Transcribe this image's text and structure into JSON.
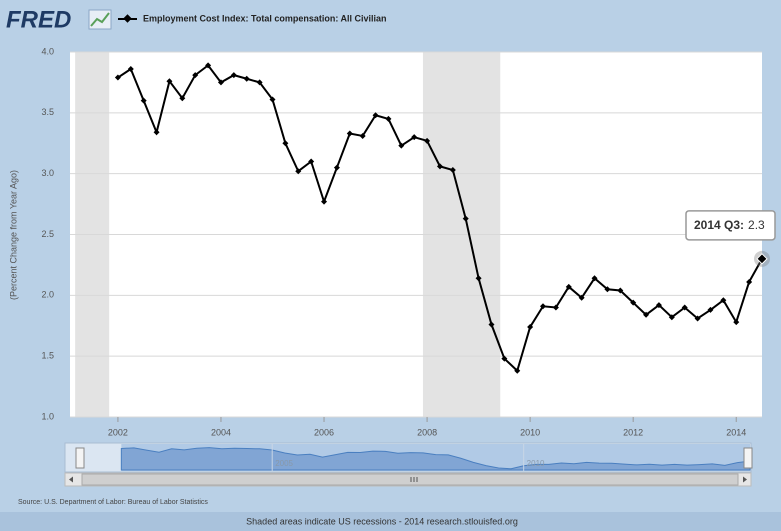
{
  "logo": "FRED",
  "chart_data": {
    "type": "line",
    "title": "Employment Cost Index: Total compensation: All Civilian",
    "y_label": "(Percent Change from Year Ago)",
    "color": "#000000",
    "x": [
      2002,
      2002.25,
      2002.5,
      2002.75,
      2003,
      2003.25,
      2003.5,
      2003.75,
      2004,
      2004.25,
      2004.5,
      2004.75,
      2005,
      2005.25,
      2005.5,
      2005.75,
      2006,
      2006.25,
      2006.5,
      2006.75,
      2007,
      2007.25,
      2007.5,
      2007.75,
      2008,
      2008.25,
      2008.5,
      2008.75,
      2009,
      2009.25,
      2009.5,
      2009.75,
      2010,
      2010.25,
      2010.5,
      2010.75,
      2011,
      2011.25,
      2011.5,
      2011.75,
      2012,
      2012.25,
      2012.5,
      2012.75,
      2013,
      2013.25,
      2013.5,
      2013.75,
      2014,
      2014.25,
      2014.5
    ],
    "values": [
      3.79,
      3.86,
      3.6,
      3.34,
      3.76,
      3.62,
      3.81,
      3.89,
      3.75,
      3.81,
      3.78,
      3.75,
      3.61,
      3.25,
      3.02,
      3.1,
      2.77,
      3.05,
      3.33,
      3.31,
      3.48,
      3.45,
      3.23,
      3.3,
      3.27,
      3.06,
      3.03,
      2.63,
      2.14,
      1.76,
      1.48,
      1.38,
      1.74,
      1.91,
      1.9,
      2.07,
      1.98,
      2.14,
      2.05,
      2.04,
      1.94,
      1.84,
      1.92,
      1.82,
      1.9,
      1.81,
      1.88,
      1.96,
      1.78,
      2.11,
      2.3
    ],
    "xlim": [
      2001.07,
      2014.5
    ],
    "xticks": [
      2002,
      2004,
      2006,
      2008,
      2010,
      2012,
      2014
    ],
    "ylim": [
      1,
      4
    ],
    "yticks": [
      {
        "value": 1,
        "label": "1.0"
      },
      1.5,
      {
        "value": 2,
        "label": "2.0"
      },
      2.5,
      {
        "value": 3,
        "label": "3.0"
      },
      3.5,
      {
        "value": 4,
        "label": "4.0"
      }
    ],
    "grid": true,
    "recessions": [
      [
        2001.17,
        2001.83
      ],
      [
        2007.92,
        2009.42
      ]
    ],
    "tooltip": {
      "label": "2014 Q3:",
      "index": 50
    },
    "navigator": {
      "xlim": [
        2000.9,
        2014.5
      ],
      "xticks": [
        2005,
        2010
      ]
    }
  },
  "source": "Source: U.S. Department of Labor: Bureau of Labor Statistics",
  "footer": "Shaded areas indicate US recessions - 2014 research.stlouisfed.org"
}
